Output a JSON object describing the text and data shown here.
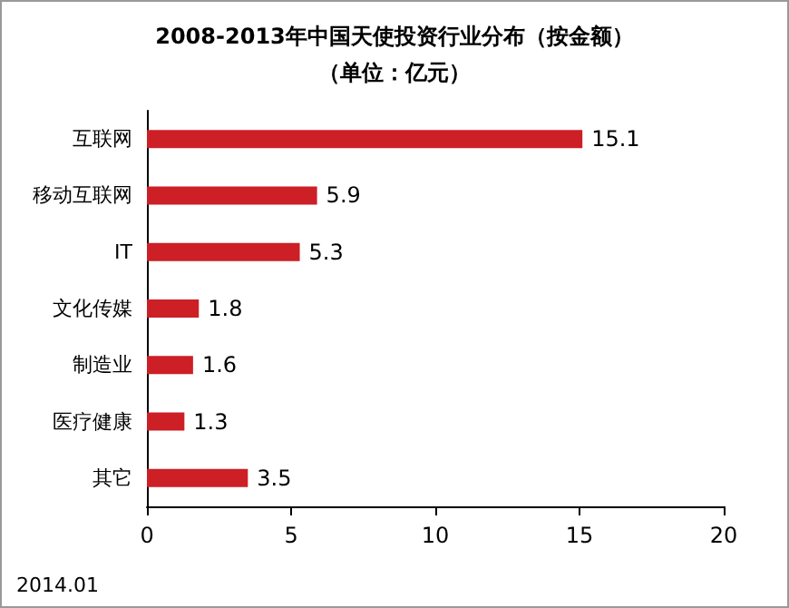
{
  "chart_data": {
    "type": "bar",
    "orientation": "horizontal",
    "title": "2008-2013年中国天使投资行业分布（按金额）",
    "subtitle": "（单位：亿元）",
    "categories": [
      "互联网",
      "移动互联网",
      "IT",
      "文化传媒",
      "制造业",
      "医疗健康",
      "其它"
    ],
    "values": [
      15.1,
      5.9,
      5.3,
      1.8,
      1.6,
      1.3,
      3.5
    ],
    "color": "#cc1f26",
    "xlim": [
      0,
      20
    ],
    "xticks": [
      0,
      5,
      10,
      15,
      20
    ],
    "grid": false,
    "data_labels": true,
    "annotations": [
      "2014.01"
    ]
  }
}
